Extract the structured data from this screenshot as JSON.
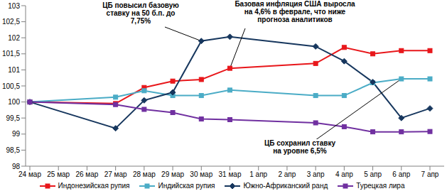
{
  "chart_data": {
    "type": "line",
    "categories": [
      "24 мар",
      "25 мар",
      "26 мар",
      "27 мар",
      "28 мар",
      "29 мар",
      "30 мар",
      "31 мар",
      "1 апр",
      "2 апр",
      "3 апр",
      "4 апр",
      "5 апр",
      "6 апр",
      "7 апр"
    ],
    "series": [
      {
        "name": "Индонезийская рупия",
        "color": "#e8171b",
        "marker": "square",
        "values": [
          100,
          null,
          null,
          99.95,
          100.45,
          100.65,
          100.7,
          101.05,
          null,
          null,
          101.2,
          101.7,
          101.5,
          101.6,
          101.6
        ]
      },
      {
        "name": "Индийская рупия",
        "color": "#4bacc6",
        "marker": "square",
        "values": [
          100,
          null,
          null,
          100.15,
          100.35,
          100.2,
          100.2,
          100.37,
          null,
          null,
          100.2,
          100.2,
          100.6,
          100.72,
          100.72
        ]
      },
      {
        "name": "Южно-Африканский ранд",
        "color": "#17375e",
        "marker": "diamond",
        "values": [
          100,
          null,
          null,
          99.18,
          100.05,
          100.3,
          101.9,
          102.03,
          null,
          null,
          101.73,
          101.27,
          100.62,
          99.5,
          99.8
        ]
      },
      {
        "name": "Турецкая лира",
        "color": "#7030a0",
        "marker": "square",
        "values": [
          100,
          null,
          null,
          99.92,
          99.77,
          99.67,
          99.47,
          99.45,
          null,
          null,
          99.35,
          99.23,
          99.07,
          99.07,
          99.08
        ]
      }
    ],
    "ylim": [
      98,
      103
    ],
    "yticks": [
      98,
      {
        "value": 98.5,
        "label": "98,5"
      },
      99,
      {
        "value": 99.5,
        "label": "99,5"
      },
      100,
      {
        "value": 100.5,
        "label": "100,5"
      },
      101,
      {
        "value": 101.5,
        "label": "101,5"
      },
      102,
      {
        "value": 102.5,
        "label": "102,5"
      },
      103
    ],
    "grid": false,
    "legend": "bottom",
    "annotations": [
      {
        "text": "ЦБ повысил базовую ставку на 50 б.п. до 7,75%",
        "x": "30 мар",
        "y": 101.9
      },
      {
        "text": "Базовая инфляция США выросла на 4,6% в феврале, что ниже прогноза аналитиков",
        "x": "31 мар",
        "y": 101.05
      },
      {
        "text": "ЦБ сохранил ставку на уровне 6,5%",
        "x": "6 апр",
        "y": 100.72
      }
    ]
  }
}
